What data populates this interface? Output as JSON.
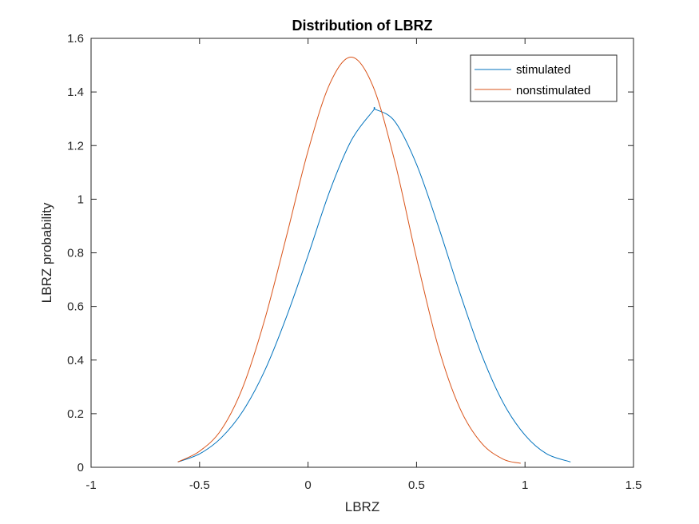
{
  "chart_data": {
    "type": "line",
    "title": "Distribution of LBRZ",
    "xlabel": "LBRZ",
    "ylabel": "LBRZ probability",
    "xlim": [
      -1,
      1.5
    ],
    "ylim": [
      0,
      1.6
    ],
    "xticks": [
      -1,
      -0.5,
      0,
      0.5,
      1,
      1.5
    ],
    "xtick_labels": [
      "-1",
      "-0.5",
      "0",
      "0.5",
      "1",
      "1.5"
    ],
    "yticks": [
      0,
      0.2,
      0.4,
      0.6,
      0.8,
      1,
      1.2,
      1.4,
      1.6
    ],
    "ytick_labels": [
      "0",
      "0.2",
      "0.4",
      "0.6",
      "0.8",
      "1",
      "1.2",
      "1.4",
      "1.6"
    ],
    "grid": false,
    "legend_position": "top-right",
    "series": [
      {
        "name": "stimulated",
        "color": "#0072BD",
        "x": [
          -0.6,
          -0.5,
          -0.4,
          -0.3,
          -0.2,
          -0.1,
          0.0,
          0.1,
          0.2,
          0.3,
          0.31,
          0.4,
          0.5,
          0.6,
          0.7,
          0.8,
          0.9,
          1.0,
          1.1,
          1.21
        ],
        "y": [
          0.02,
          0.05,
          0.11,
          0.21,
          0.36,
          0.56,
          0.79,
          1.03,
          1.22,
          1.33,
          1.335,
          1.29,
          1.13,
          0.9,
          0.65,
          0.42,
          0.24,
          0.12,
          0.05,
          0.02
        ]
      },
      {
        "name": "nonstimulated",
        "color": "#D95319",
        "x": [
          -0.6,
          -0.5,
          -0.4,
          -0.3,
          -0.2,
          -0.1,
          0.0,
          0.1,
          0.2,
          0.3,
          0.4,
          0.5,
          0.6,
          0.7,
          0.8,
          0.9,
          0.98
        ],
        "y": [
          0.02,
          0.06,
          0.14,
          0.3,
          0.55,
          0.86,
          1.18,
          1.43,
          1.53,
          1.42,
          1.14,
          0.78,
          0.45,
          0.22,
          0.09,
          0.03,
          0.015
        ]
      }
    ]
  }
}
